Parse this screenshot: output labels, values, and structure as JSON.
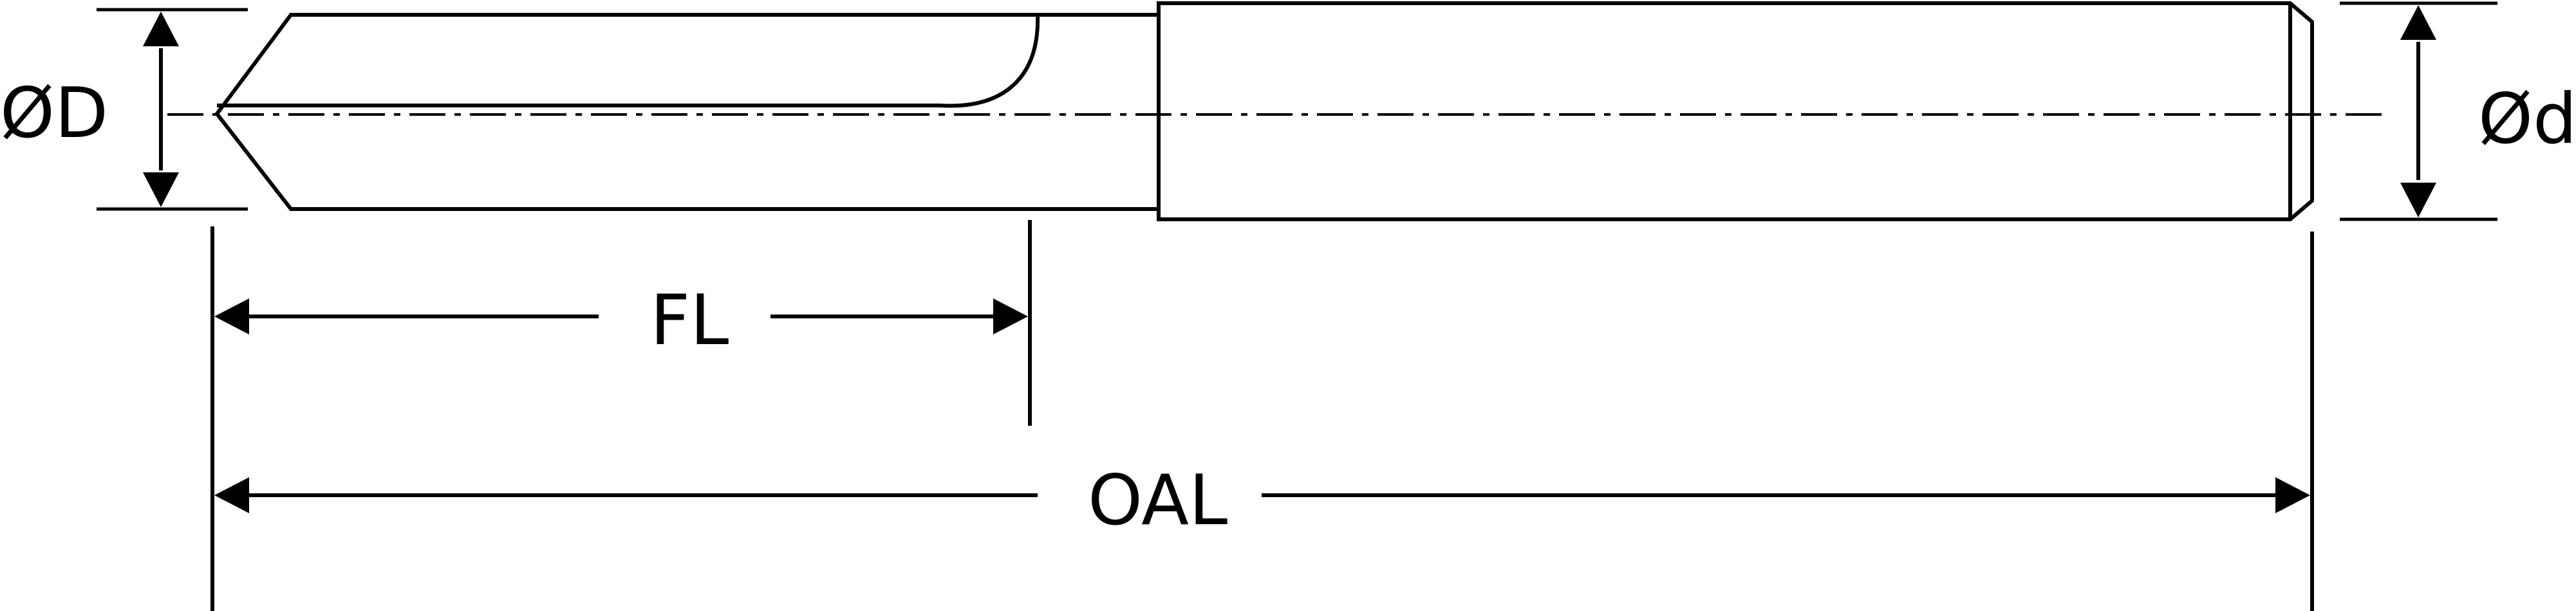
{
  "colors": {
    "ink": "#000000",
    "background": "#ffffff"
  },
  "labels": {
    "tip_diameter": "ØD",
    "shank_diameter": "Ød",
    "flute_length": "FL",
    "overall_length": "OAL"
  }
}
